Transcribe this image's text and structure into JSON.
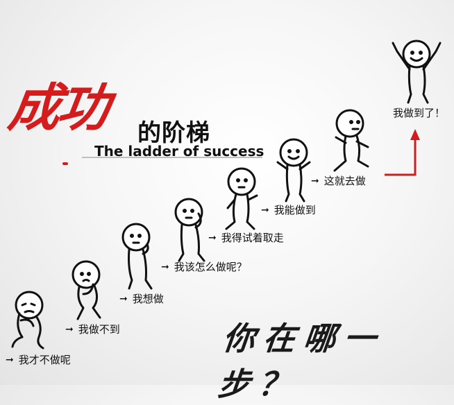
{
  "title": {
    "cn_red": "成功",
    "cn_black": "的阶梯",
    "en": "The ladder of success"
  },
  "steps": [
    {
      "label": "我才不做呢"
    },
    {
      "label": "我做不到"
    },
    {
      "label": "我想做"
    },
    {
      "label": "我该怎么做呢？"
    },
    {
      "label": "我得试着取走"
    },
    {
      "label": "我能做到"
    },
    {
      "label": "这就去做"
    },
    {
      "label": "我做到了！"
    }
  ],
  "arrow_glyph": "➞",
  "question": "你在哪一步？",
  "colors": {
    "accent": "#d51c1c",
    "ink": "#111111"
  }
}
